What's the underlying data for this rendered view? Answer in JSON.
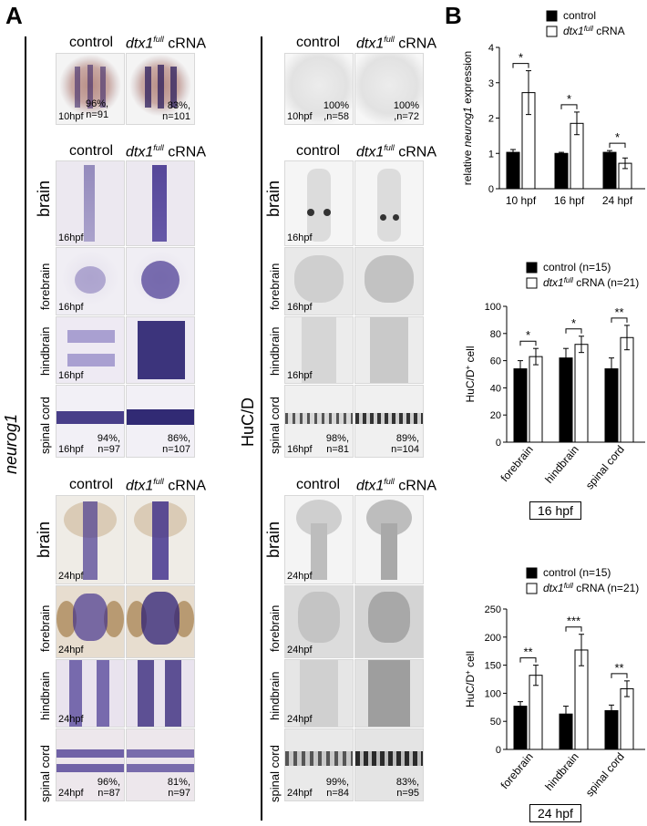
{
  "panel_a": {
    "letter": "A",
    "left_label": "neurog1",
    "right_label": "HuC/D",
    "col_control": "control",
    "col_dtx_prefix": "dtx1",
    "col_dtx_sup": "full",
    "col_dtx_suffix": " cRNA",
    "rows": {
      "brain": "brain",
      "forebrain": "forebrain",
      "hindbrain": "hindbrain",
      "spinal_cord": "spinal cord"
    },
    "stages": {
      "s10": "10hpf",
      "s16": "16hpf",
      "s24": "24hpf"
    },
    "stats": {
      "neurog1_10_ctrl": "96%,\nn=91",
      "neurog1_10_dtx": "83%,\nn=101",
      "neurog1_16_ctrl": "94%,\nn=97",
      "neurog1_16_dtx": "86%,\nn=107",
      "neurog1_24_ctrl": "96%,\nn=87",
      "neurog1_24_dtx": "81%,\nn=97",
      "huc_10_ctrl": "100%\n,n=58",
      "huc_10_dtx": "100%\n,n=72",
      "huc_16_ctrl": "98%,\nn=81",
      "huc_16_dtx": "89%,\nn=104",
      "huc_24_ctrl": "99%,\nn=84",
      "huc_24_dtx": "83%,\nn=95"
    }
  },
  "panel_b": {
    "letter": "B",
    "box_16": "16 hpf",
    "box_24": "24 hpf"
  },
  "colors": {
    "ish_purple": "#3b2a8a",
    "ish_bg": "#ddd6e6",
    "brown": "#a07a55",
    "black": "#000000"
  },
  "chart_data": [
    {
      "type": "bar",
      "categories": [
        "10 hpf",
        "16 hpf",
        "24 hpf"
      ],
      "series": [
        {
          "name": "control",
          "values": [
            1.03,
            1.0,
            1.03
          ],
          "errors": [
            0.08,
            0.03,
            0.05
          ]
        },
        {
          "name": "dtx1full cRNA",
          "values": [
            2.72,
            1.85,
            0.72
          ],
          "errors": [
            0.62,
            0.32,
            0.15
          ]
        }
      ],
      "legend": [
        "control",
        "dtx1",
        "full",
        " cRNA"
      ],
      "ylabel_parts": [
        "relative ",
        "neurog1",
        " expression"
      ],
      "ylim": [
        0,
        4
      ],
      "yticks": [
        "0",
        "1",
        "2",
        "3",
        "4"
      ],
      "significance": [
        "*",
        "*",
        "*"
      ]
    },
    {
      "type": "bar",
      "categories": [
        "forebrain",
        "hindbrain",
        "spinal cord"
      ],
      "series": [
        {
          "name": "control (n=15)",
          "values": [
            54,
            62,
            54
          ],
          "errors": [
            6,
            7,
            8
          ]
        },
        {
          "name": "dtx1full cRNA (n=21)",
          "values": [
            63,
            72,
            77
          ],
          "errors": [
            6,
            6,
            9
          ]
        }
      ],
      "legend": [
        "control (n=15)",
        "dtx1",
        "full",
        " cRNA (n=21)"
      ],
      "ylabel_parts": [
        "HuC/D",
        "+",
        " cell"
      ],
      "ylim": [
        0,
        100
      ],
      "yticks": [
        "0",
        "20",
        "40",
        "60",
        "80",
        "100"
      ],
      "significance": [
        "*",
        "*",
        "**"
      ]
    },
    {
      "type": "bar",
      "categories": [
        "forebrain",
        "hindbrain",
        "spinal cord"
      ],
      "series": [
        {
          "name": "control (n=15)",
          "values": [
            77,
            63,
            69
          ],
          "errors": [
            8,
            14,
            10
          ]
        },
        {
          "name": "dtx1full cRNA (n=21)",
          "values": [
            132,
            177,
            108
          ],
          "errors": [
            18,
            28,
            14
          ]
        }
      ],
      "legend": [
        "control (n=15)",
        "dtx1",
        "full",
        " cRNA (n=21)"
      ],
      "ylabel_parts": [
        "HuC/D",
        "+",
        " cell"
      ],
      "ylim": [
        0,
        250
      ],
      "yticks": [
        "0",
        "50",
        "100",
        "150",
        "200",
        "250"
      ],
      "significance": [
        "**",
        "***",
        "**"
      ]
    }
  ]
}
